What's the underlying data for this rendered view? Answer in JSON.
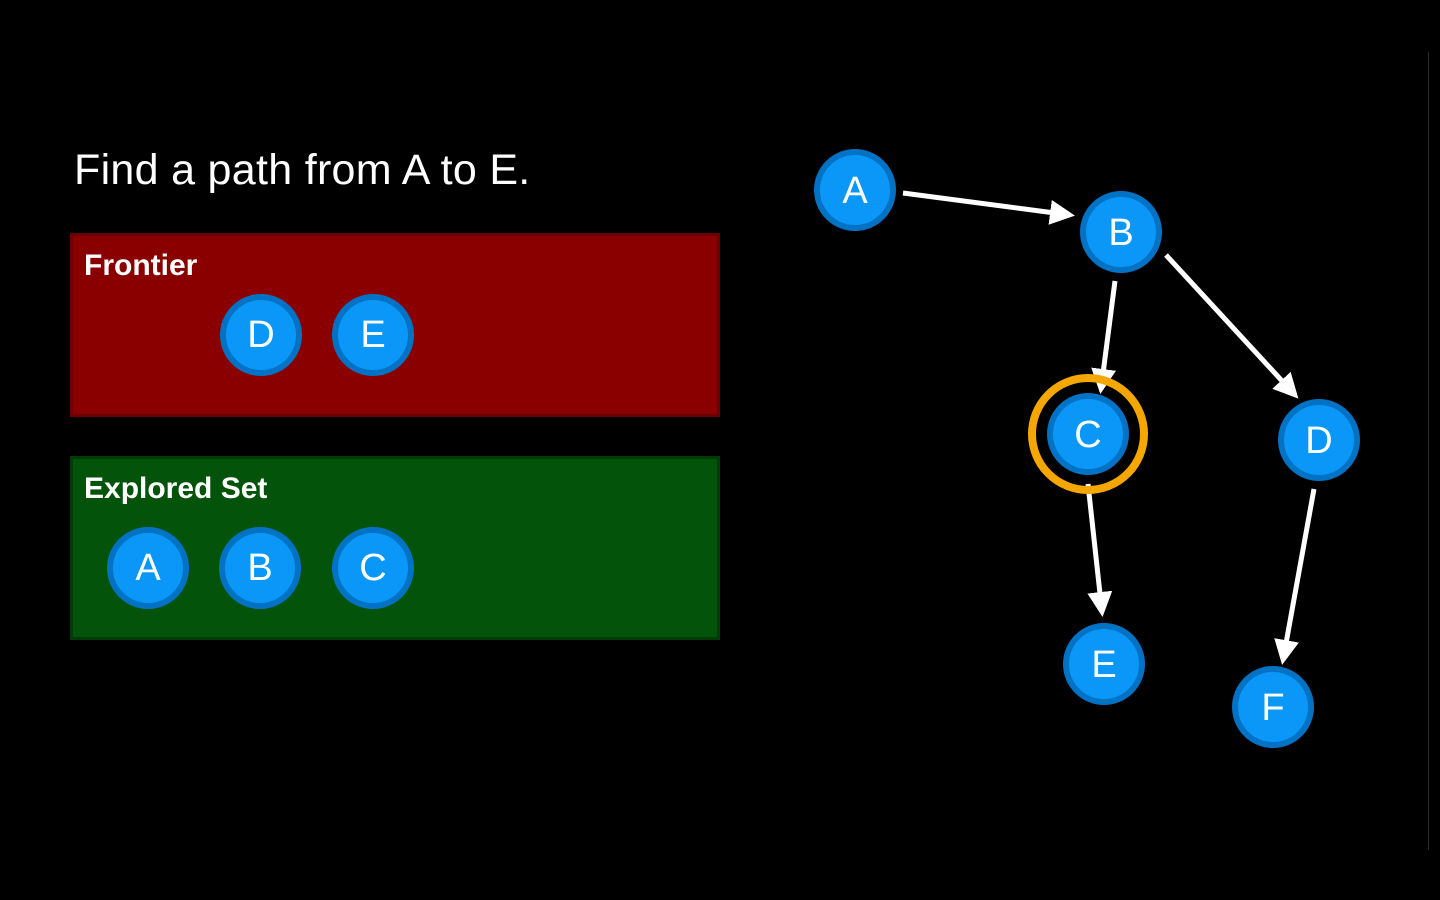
{
  "prompt": "Find a path from A to E.",
  "frontier": {
    "title": "Frontier",
    "nodes": [
      "D",
      "E"
    ]
  },
  "explored": {
    "title": "Explored Set",
    "nodes": [
      "A",
      "B",
      "C"
    ]
  },
  "graph": {
    "nodes": [
      "A",
      "B",
      "C",
      "D",
      "E",
      "F"
    ],
    "edges": [
      {
        "from": "A",
        "to": "B"
      },
      {
        "from": "B",
        "to": "C"
      },
      {
        "from": "B",
        "to": "D"
      },
      {
        "from": "C",
        "to": "E"
      },
      {
        "from": "D",
        "to": "F"
      }
    ],
    "highlighted_node": "C"
  },
  "colors": {
    "background": "#000000",
    "node_fill": "#0a97f7",
    "node_ring": "#0272c4",
    "edge": "#ffffff",
    "highlight": "#f5a700",
    "frontier_bg": "#8a0000",
    "explored_bg": "#04530a"
  }
}
